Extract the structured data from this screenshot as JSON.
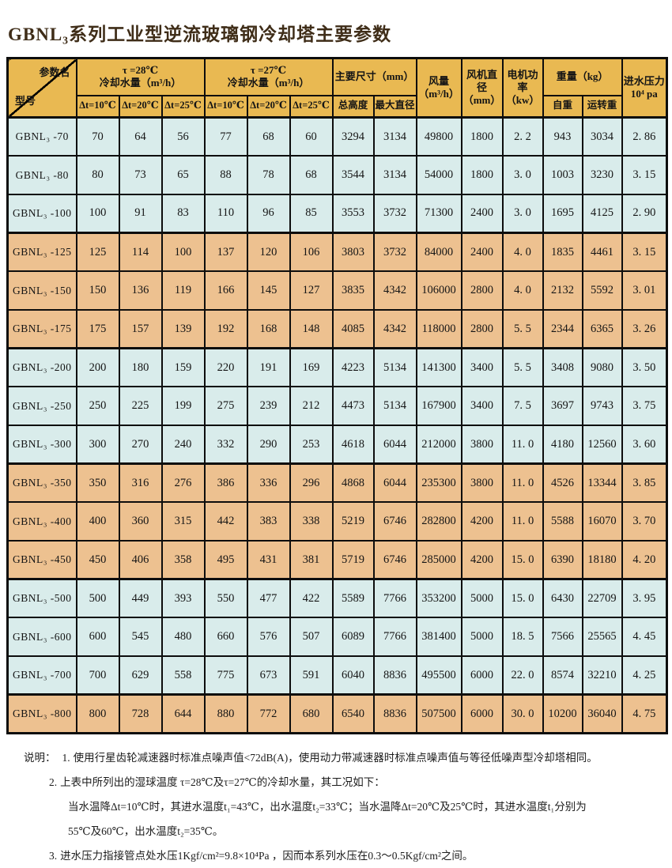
{
  "colors": {
    "header_bg": "#E9B952",
    "row_blue": "#D9ECEB",
    "row_orange": "#EDC190",
    "border": "#0d0d0d",
    "title": "#3F2D18"
  },
  "title": "GBNL₃系列工业型逆流玻璃钢冷却塔主要参数",
  "table": {
    "corner": {
      "top_label": "参数名",
      "bottom_label": "型号"
    },
    "header_groups": {
      "tau28": "τ =28℃\n冷却水量（m³/h）",
      "tau27": "τ =27℃\n冷却水量（m³/h）",
      "main_size": "主要尺寸（mm）",
      "air_flow": "风量\n（m³/h）",
      "fan_diameter": "风机直\n径\n（mm）",
      "motor_power": "电机功\n率（kw）",
      "weight": "重量（kg）",
      "inlet_pressure": "进水压力\n10⁴ pa"
    },
    "sub_headers": {
      "dt10": "Δt=10℃",
      "dt20": "Δt=20℃",
      "dt25": "Δt=25℃",
      "total_height": "总高度",
      "max_diameter": "最大直径",
      "self_weight": "自重",
      "run_weight": "运转重"
    },
    "rows": [
      {
        "model": "GBNL₃ -70",
        "tone": "blue",
        "group_end": false,
        "values": [
          "70",
          "64",
          "56",
          "77",
          "68",
          "60",
          "3294",
          "3134",
          "49800",
          "1800",
          "2. 2",
          "943",
          "3034",
          "2. 86"
        ]
      },
      {
        "model": "GBNL₃ -80",
        "tone": "blue",
        "group_end": false,
        "values": [
          "80",
          "73",
          "65",
          "88",
          "78",
          "68",
          "3544",
          "3134",
          "54000",
          "1800",
          "3. 0",
          "1003",
          "3230",
          "3. 15"
        ]
      },
      {
        "model": "GBNL₃ -100",
        "tone": "blue",
        "group_end": true,
        "values": [
          "100",
          "91",
          "83",
          "110",
          "96",
          "85",
          "3553",
          "3732",
          "71300",
          "2400",
          "3. 0",
          "1695",
          "4125",
          "2. 90"
        ]
      },
      {
        "model": "GBNL₃ -125",
        "tone": "orange",
        "group_end": false,
        "values": [
          "125",
          "114",
          "100",
          "137",
          "120",
          "106",
          "3803",
          "3732",
          "84000",
          "2400",
          "4. 0",
          "1835",
          "4461",
          "3. 15"
        ]
      },
      {
        "model": "GBNL₃ -150",
        "tone": "orange",
        "group_end": false,
        "values": [
          "150",
          "136",
          "119",
          "166",
          "145",
          "127",
          "3835",
          "4342",
          "106000",
          "2800",
          "4. 0",
          "2132",
          "5592",
          "3. 01"
        ]
      },
      {
        "model": "GBNL₃ -175",
        "tone": "orange",
        "group_end": true,
        "values": [
          "175",
          "157",
          "139",
          "192",
          "168",
          "148",
          "4085",
          "4342",
          "118000",
          "2800",
          "5. 5",
          "2344",
          "6365",
          "3. 26"
        ]
      },
      {
        "model": "GBNL₃ -200",
        "tone": "blue",
        "group_end": false,
        "values": [
          "200",
          "180",
          "159",
          "220",
          "191",
          "169",
          "4223",
          "5134",
          "141300",
          "3400",
          "5. 5",
          "3408",
          "9080",
          "3. 50"
        ]
      },
      {
        "model": "GBNL₃ -250",
        "tone": "blue",
        "group_end": false,
        "values": [
          "250",
          "225",
          "199",
          "275",
          "239",
          "212",
          "4473",
          "5134",
          "167900",
          "3400",
          "7. 5",
          "3697",
          "9743",
          "3. 75"
        ]
      },
      {
        "model": "GBNL₃ -300",
        "tone": "blue",
        "group_end": true,
        "values": [
          "300",
          "270",
          "240",
          "332",
          "290",
          "253",
          "4618",
          "6044",
          "212000",
          "3800",
          "11. 0",
          "4180",
          "12560",
          "3. 60"
        ]
      },
      {
        "model": "GBNL₃ -350",
        "tone": "orange",
        "group_end": false,
        "values": [
          "350",
          "316",
          "276",
          "386",
          "336",
          "296",
          "4868",
          "6044",
          "235300",
          "3800",
          "11. 0",
          "4526",
          "13344",
          "3. 85"
        ]
      },
      {
        "model": "GBNL₃ -400",
        "tone": "orange",
        "group_end": false,
        "values": [
          "400",
          "360",
          "315",
          "442",
          "383",
          "338",
          "5219",
          "6746",
          "282800",
          "4200",
          "11. 0",
          "5588",
          "16070",
          "3. 70"
        ]
      },
      {
        "model": "GBNL₃ -450",
        "tone": "orange",
        "group_end": true,
        "values": [
          "450",
          "406",
          "358",
          "495",
          "431",
          "381",
          "5719",
          "6746",
          "285000",
          "4200",
          "15. 0",
          "6390",
          "18180",
          "4. 20"
        ]
      },
      {
        "model": "GBNL₃ -500",
        "tone": "blue",
        "group_end": false,
        "values": [
          "500",
          "449",
          "393",
          "550",
          "477",
          "422",
          "5589",
          "7766",
          "353200",
          "5000",
          "15. 0",
          "6430",
          "22709",
          "3. 95"
        ]
      },
      {
        "model": "GBNL₃ -600",
        "tone": "blue",
        "group_end": false,
        "values": [
          "600",
          "545",
          "480",
          "660",
          "576",
          "507",
          "6089",
          "7766",
          "381400",
          "5000",
          "18. 5",
          "7566",
          "25565",
          "4. 45"
        ]
      },
      {
        "model": "GBNL₃ -700",
        "tone": "blue",
        "group_end": true,
        "values": [
          "700",
          "629",
          "558",
          "775",
          "673",
          "591",
          "6040",
          "8836",
          "495500",
          "6000",
          "22. 0",
          "8574",
          "32210",
          "4. 25"
        ]
      },
      {
        "model": "GBNL₃ -800",
        "tone": "orange",
        "group_end": false,
        "values": [
          "800",
          "728",
          "644",
          "880",
          "772",
          "680",
          "6540",
          "8836",
          "507500",
          "6000",
          "30. 0",
          "10200",
          "36040",
          "4. 75"
        ]
      }
    ]
  },
  "notes": {
    "label": "说明：",
    "lines": [
      {
        "num": "1.",
        "indent": 0,
        "text": "使用行星齿轮减速器时标准点噪声值<72dB(A)，使用动力带减速器时标准点噪声值与等径低噪声型冷却塔相同。"
      },
      {
        "num": "2.",
        "indent": 0,
        "text": "上表中所列出的湿球温度 τ=28℃及τ=27℃的冷却水量，其工况如下："
      },
      {
        "num": "",
        "indent": 1,
        "text": "当水温降Δt=10℃时，其进水温度t₁=43℃，出水温度t₂=33℃；当水温降Δt=20℃及25℃时，其进水温度t₁分别为"
      },
      {
        "num": "",
        "indent": 1,
        "text": "55℃及60℃，出水温度t₂=35℃。"
      },
      {
        "num": "3.",
        "indent": 0,
        "text": "进水压力指接管点处水压1Kgf/cm²=9.8×10⁴Pa ，因而本系列水压在0.3～0.5Kgf/cm²之间。"
      }
    ]
  }
}
